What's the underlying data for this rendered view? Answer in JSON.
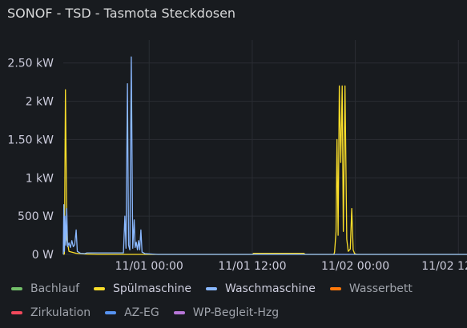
{
  "panel": {
    "title": "SONOF - TSD - Tasmota Steckdosen"
  },
  "chart_data": {
    "type": "line",
    "title": "SONOF - TSD - Tasmota Steckdosen",
    "xlabel": "",
    "ylabel": "",
    "y_unit": "W",
    "ylim": [
      0,
      2800
    ],
    "y_ticks": [
      {
        "value": 0,
        "label": "0 W"
      },
      {
        "value": 500,
        "label": "500 W"
      },
      {
        "value": 1000,
        "label": "1 kW"
      },
      {
        "value": 1500,
        "label": "1.50 kW"
      },
      {
        "value": 2000,
        "label": "2 kW"
      },
      {
        "value": 2500,
        "label": "2.50 kW"
      }
    ],
    "x_range": [
      "10/31 14:00",
      "11/02 13:00"
    ],
    "x_ticks": [
      {
        "value": "11/01 00:00",
        "label": "11/01 00:00"
      },
      {
        "value": "11/01 12:00",
        "label": "11/01 12:00"
      },
      {
        "value": "11/02 00:00",
        "label": "11/02 00:00"
      },
      {
        "value": "11/02 12:00",
        "label": "11/02 12:"
      }
    ],
    "grid": true,
    "legend_position": "bottom",
    "series": [
      {
        "name": "Bachlauf",
        "color": "#73bf69",
        "visible": false,
        "points": []
      },
      {
        "name": "Spülmaschine",
        "color": "#fade2a",
        "visible": true,
        "points": [
          [
            "10/31 14:00",
            0
          ],
          [
            "10/31 14:08",
            5
          ],
          [
            "10/31 14:15",
            2150
          ],
          [
            "10/31 14:25",
            200
          ],
          [
            "10/31 14:40",
            40
          ],
          [
            "10/31 15:30",
            15
          ],
          [
            "10/31 16:30",
            5
          ],
          [
            "10/31 18:00",
            0
          ],
          [
            "11/01 12:00",
            0
          ],
          [
            "11/01 12:10",
            15
          ],
          [
            "11/01 18:00",
            15
          ],
          [
            "11/01 18:10",
            0
          ],
          [
            "11/01 21:30",
            0
          ],
          [
            "11/01 21:35",
            30
          ],
          [
            "11/01 21:45",
            300
          ],
          [
            "11/01 21:52",
            1500
          ],
          [
            "11/01 22:00",
            250
          ],
          [
            "11/01 22:08",
            2200
          ],
          [
            "11/01 22:18",
            1200
          ],
          [
            "11/01 22:28",
            2200
          ],
          [
            "11/01 22:36",
            300
          ],
          [
            "11/01 22:48",
            2200
          ],
          [
            "11/01 23:00",
            200
          ],
          [
            "11/01 23:10",
            40
          ],
          [
            "11/01 23:25",
            70
          ],
          [
            "11/01 23:35",
            600
          ],
          [
            "11/01 23:45",
            60
          ],
          [
            "11/01 23:55",
            10
          ],
          [
            "11/02 00:10",
            0
          ],
          [
            "11/02 13:00",
            0
          ]
        ]
      },
      {
        "name": "Waschmaschine",
        "color": "#8ab8ff",
        "visible": true,
        "points": [
          [
            "10/31 14:00",
            0
          ],
          [
            "10/31 14:04",
            650
          ],
          [
            "10/31 14:08",
            40
          ],
          [
            "10/31 14:12",
            500
          ],
          [
            "10/31 14:18",
            120
          ],
          [
            "10/31 14:24",
            600
          ],
          [
            "10/31 14:30",
            100
          ],
          [
            "10/31 14:40",
            150
          ],
          [
            "10/31 14:50",
            90
          ],
          [
            "10/31 15:00",
            180
          ],
          [
            "10/31 15:10",
            100
          ],
          [
            "10/31 15:20",
            130
          ],
          [
            "10/31 15:30",
            320
          ],
          [
            "10/31 15:38",
            40
          ],
          [
            "10/31 16:00",
            15
          ],
          [
            "10/31 16:30",
            10
          ],
          [
            "10/31 16:45",
            20
          ],
          [
            "10/31 20:00",
            20
          ],
          [
            "10/31 21:00",
            20
          ],
          [
            "10/31 21:10",
            500
          ],
          [
            "10/31 21:18",
            80
          ],
          [
            "10/31 21:28",
            2230
          ],
          [
            "10/31 21:36",
            120
          ],
          [
            "10/31 21:45",
            60
          ],
          [
            "10/31 21:55",
            2580
          ],
          [
            "10/31 22:05",
            80
          ],
          [
            "10/31 22:15",
            450
          ],
          [
            "10/31 22:22",
            90
          ],
          [
            "10/31 22:30",
            160
          ],
          [
            "10/31 22:38",
            60
          ],
          [
            "10/31 22:46",
            180
          ],
          [
            "10/31 22:54",
            60
          ],
          [
            "10/31 23:02",
            320
          ],
          [
            "10/31 23:10",
            30
          ],
          [
            "10/31 23:30",
            10
          ],
          [
            "11/01 01:00",
            0
          ],
          [
            "11/02 13:00",
            0
          ]
        ]
      },
      {
        "name": "Wasserbett",
        "color": "#ff780a",
        "visible": false,
        "points": []
      },
      {
        "name": "Zirkulation",
        "color": "#f2495c",
        "visible": false,
        "points": []
      },
      {
        "name": "AZ-EG",
        "color": "#5794f2",
        "visible": false,
        "points": []
      },
      {
        "name": "WP-Begleit-Hzg",
        "color": "#b877d9",
        "visible": false,
        "points": []
      }
    ]
  },
  "legend": {
    "rows": [
      [
        {
          "label": "Bachlauf",
          "color": "#73bf69"
        },
        {
          "label": "Spülmaschine",
          "color": "#fade2a"
        },
        {
          "label": "Waschmaschine",
          "color": "#8ab8ff"
        },
        {
          "label": "Wasserbett",
          "color": "#ff780a"
        }
      ],
      [
        {
          "label": "Zirkulation",
          "color": "#f2495c"
        },
        {
          "label": "AZ-EG",
          "color": "#5794f2"
        },
        {
          "label": "WP-Begleit-Hzg",
          "color": "#b877d9"
        }
      ]
    ]
  }
}
